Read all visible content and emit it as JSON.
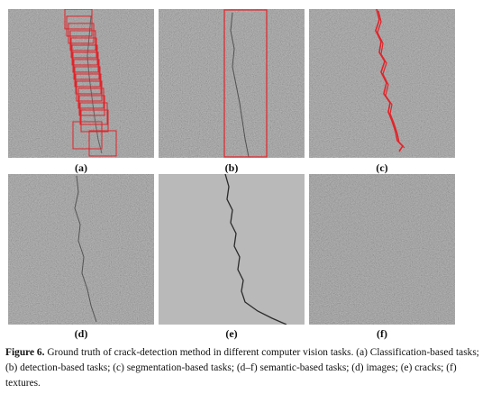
{
  "panels": {
    "a": "(a)",
    "b": "(b)",
    "c": "(c)",
    "d": "(d)",
    "e": "(e)",
    "f": "(f)"
  },
  "caption": {
    "figure_label": "Figure 6.",
    "text": "Ground truth of crack-detection method in different computer vision tasks. (a) Classification-based tasks; (b) detection-based tasks; (c) segmentation-based tasks; (d–f) semantic-based tasks; (d) images; (e) cracks; (f) textures."
  },
  "colors": {
    "annotation_red": "#e0242a",
    "pavement_gray": "#8e8e8e",
    "crack_background": "#b9b9b9"
  }
}
